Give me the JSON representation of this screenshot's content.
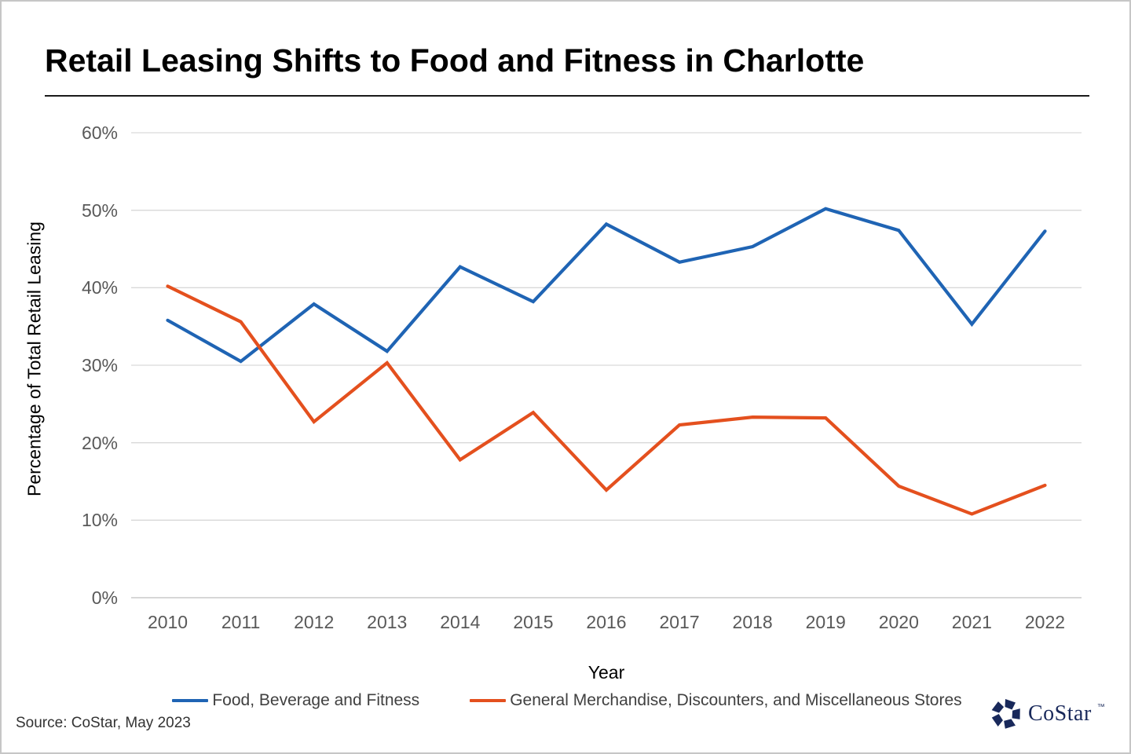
{
  "header": {
    "title": "Retail Leasing Shifts to Food and Fitness in Charlotte"
  },
  "chart_data": {
    "type": "line",
    "title": "Retail Leasing Shifts to Food and Fitness in Charlotte",
    "xlabel": "Year",
    "ylabel": "Percentage of Total Retail Leasing",
    "categories": [
      "2010",
      "2011",
      "2012",
      "2013",
      "2014",
      "2015",
      "2016",
      "2017",
      "2018",
      "2019",
      "2020",
      "2021",
      "2022"
    ],
    "ylim": [
      0,
      60
    ],
    "y_ticks": [
      0,
      10,
      20,
      30,
      40,
      50,
      60
    ],
    "y_tick_suffix": "%",
    "grid": "horizontal",
    "legend_position": "bottom",
    "series": [
      {
        "name": "Food, Beverage and Fitness",
        "slug": "food-beverage-and-fitness",
        "color": "#1f64b4",
        "values": [
          35.8,
          30.5,
          37.9,
          31.8,
          42.7,
          38.2,
          48.2,
          43.3,
          45.3,
          50.2,
          47.4,
          35.3,
          47.3
        ]
      },
      {
        "name": "General Merchandise, Discounters, and Miscellaneous Stores",
        "slug": "general-merchandise-discounters-and-miscellaneous-stores",
        "color": "#e4501e",
        "values": [
          40.2,
          35.6,
          22.7,
          30.3,
          17.8,
          23.9,
          13.9,
          22.3,
          23.3,
          23.2,
          14.4,
          10.8,
          14.5
        ]
      }
    ]
  },
  "footer": {
    "source": "Source: CoStar, May 2023",
    "logo_text": "CoStar",
    "logo_tm": "TM",
    "logo_color": "#19295b"
  }
}
